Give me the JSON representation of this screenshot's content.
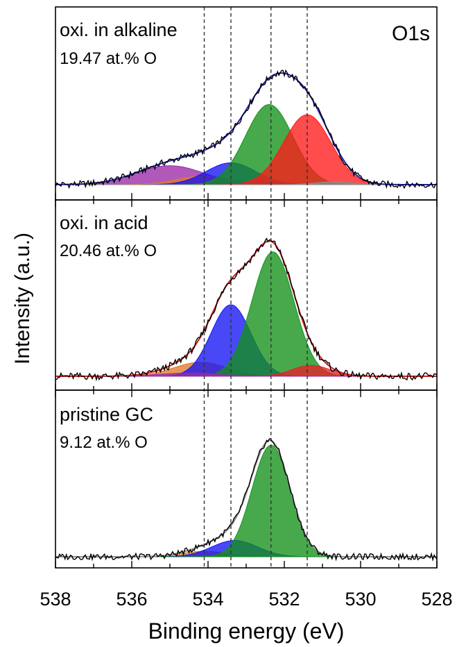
{
  "chart_data": {
    "type": "area",
    "element_label": "O1s",
    "xlabel": "Binding energy (eV)",
    "ylabel": "Intensity (a.u.)",
    "xlim": [
      538,
      528
    ],
    "x_reversed": true,
    "x_ticks": [
      538,
      536,
      534,
      532,
      530,
      528
    ],
    "reference_lines_eV": [
      534.1,
      533.4,
      532.35,
      531.4
    ],
    "panels": [
      {
        "id": "alkaline",
        "label": "oxi. in alkaline",
        "composition": "19.47 at.% O",
        "ylim": [
          0,
          1
        ],
        "envelope_color": "#1f1fb4",
        "components": [
          {
            "center": 535.0,
            "sigma": 0.9,
            "height": 0.13,
            "color": "#9a2aa8"
          },
          {
            "center": 534.1,
            "sigma": 0.7,
            "height": 0.06,
            "color": "#e07a2a"
          },
          {
            "center": 533.4,
            "sigma": 0.65,
            "height": 0.15,
            "color": "#1515f5"
          },
          {
            "center": 532.4,
            "sigma": 0.62,
            "height": 0.55,
            "color": "#13911a"
          },
          {
            "center": 531.4,
            "sigma": 0.62,
            "height": 0.48,
            "color": "#ff1a1a"
          },
          {
            "center": 530.7,
            "sigma": 0.5,
            "height": 0.02,
            "color": "#8c8c8c"
          }
        ]
      },
      {
        "id": "acid",
        "label": "oxi. in acid",
        "composition": "20.46 at.% O",
        "ylim": [
          0,
          1
        ],
        "envelope_color": "#d61c1c",
        "components": [
          {
            "center": 534.2,
            "sigma": 0.7,
            "height": 0.09,
            "color": "#e07a2a"
          },
          {
            "center": 533.4,
            "sigma": 0.52,
            "height": 0.46,
            "color": "#1515f5"
          },
          {
            "center": 532.3,
            "sigma": 0.55,
            "height": 0.8,
            "color": "#13911a"
          },
          {
            "center": 531.3,
            "sigma": 0.5,
            "height": 0.07,
            "color": "#e8202a"
          },
          {
            "center": 534.5,
            "sigma": 0.8,
            "height": 0.02,
            "color": "#9a2aa8"
          }
        ]
      },
      {
        "id": "pristine",
        "label": "pristine GC",
        "composition": "9.12 at.% O",
        "ylim": [
          0,
          1
        ],
        "envelope_color": "#8c8c8c",
        "components": [
          {
            "center": 534.1,
            "sigma": 0.6,
            "height": 0.04,
            "color": "#e07a2a"
          },
          {
            "center": 533.3,
            "sigma": 0.6,
            "height": 0.12,
            "color": "#1515f5"
          },
          {
            "center": 532.35,
            "sigma": 0.5,
            "height": 0.82,
            "color": "#13911a"
          }
        ]
      }
    ]
  }
}
